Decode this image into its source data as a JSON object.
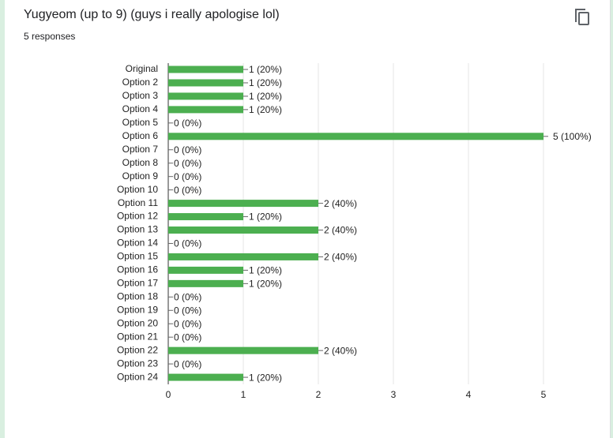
{
  "chart_data": {
    "type": "bar",
    "orientation": "horizontal",
    "title": "Yugyeom (up to 9) (guys i really apologise lol)",
    "subtitle": "5 responses",
    "categories": [
      "Original",
      "Option 2",
      "Option 3",
      "Option 4",
      "Option 5",
      "Option 6",
      "Option 7",
      "Option 8",
      "Option 9",
      "Option 10",
      "Option 11",
      "Option 12",
      "Option 13",
      "Option 14",
      "Option 15",
      "Option 16",
      "Option 17",
      "Option 18",
      "Option 19",
      "Option 20",
      "Option 21",
      "Option 22",
      "Option 23",
      "Option 24"
    ],
    "values": [
      1,
      1,
      1,
      1,
      0,
      5,
      0,
      0,
      0,
      0,
      2,
      1,
      2,
      0,
      2,
      1,
      1,
      0,
      0,
      0,
      0,
      2,
      0,
      1
    ],
    "value_labels": [
      "1 (20%)",
      "1 (20%)",
      "1 (20%)",
      "1 (20%)",
      "0 (0%)",
      "5 (100%)",
      "0 (0%)",
      "0 (0%)",
      "0 (0%)",
      "0 (0%)",
      "2 (40%)",
      "1 (20%)",
      "2 (40%)",
      "0 (0%)",
      "2 (40%)",
      "1 (20%)",
      "1 (20%)",
      "0 (0%)",
      "0 (0%)",
      "0 (0%)",
      "0 (0%)",
      "2 (40%)",
      "0 (0%)",
      "1 (20%)"
    ],
    "color": "#4caf50",
    "xlim": [
      0,
      5
    ],
    "xticks": [
      0,
      1,
      2,
      3,
      4,
      5
    ],
    "grid": true
  }
}
